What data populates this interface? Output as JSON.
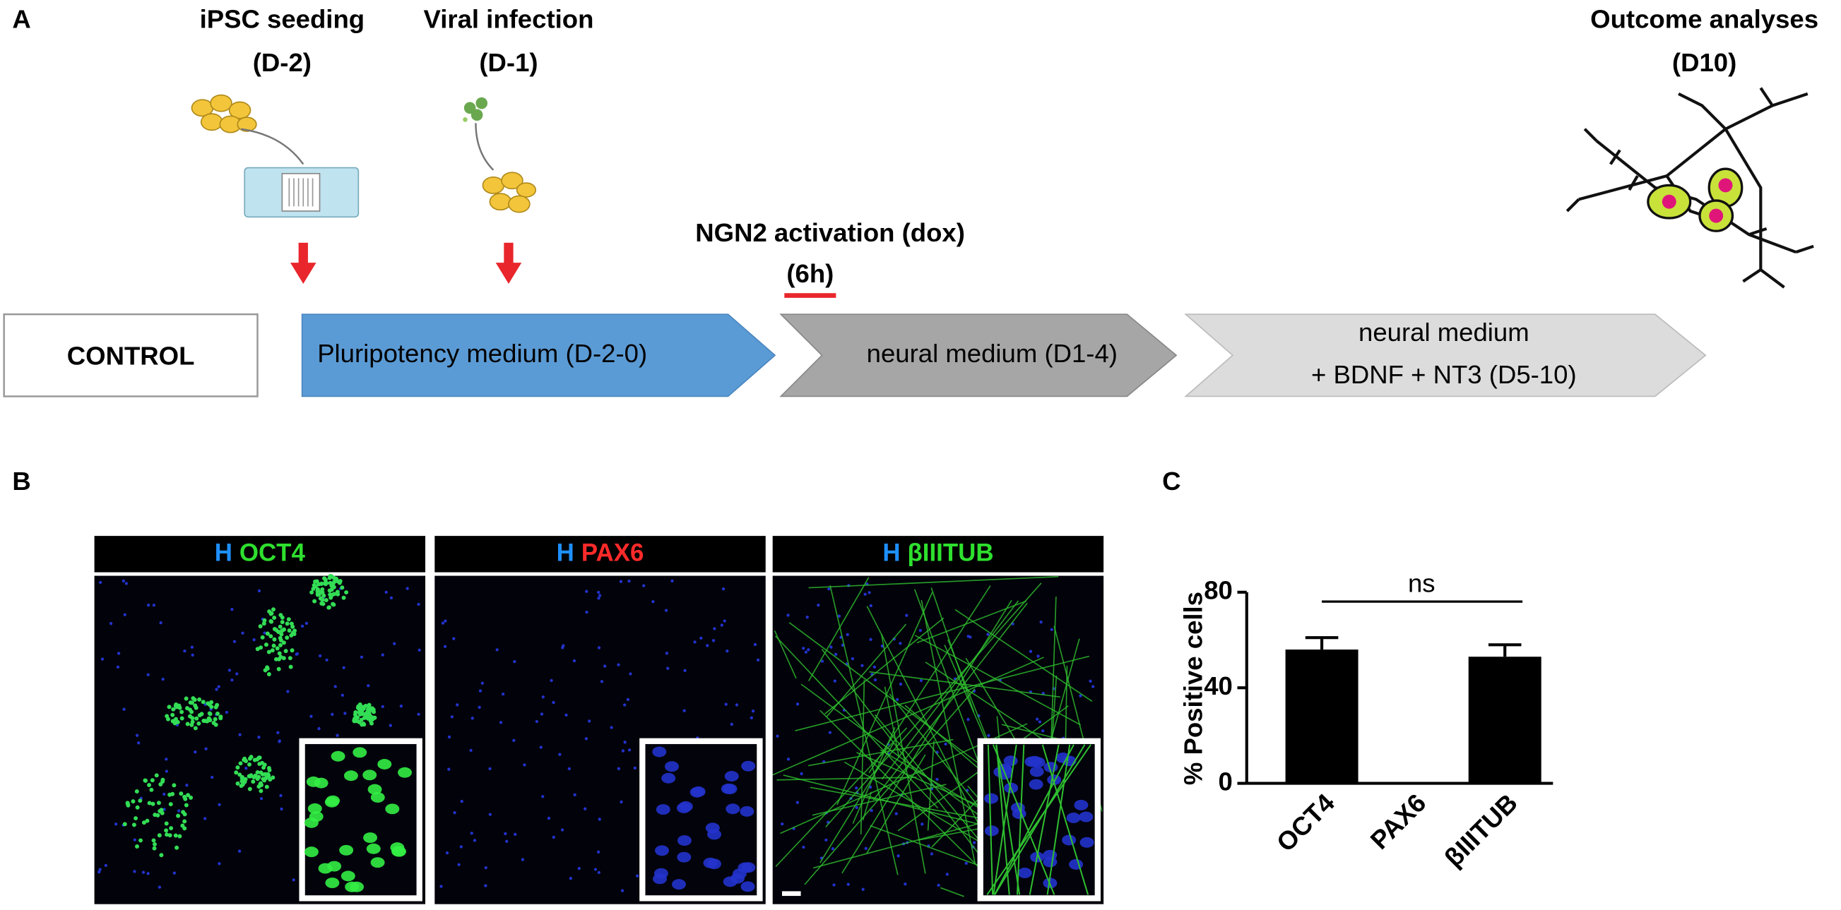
{
  "panel_a": {
    "label": "A",
    "steps": [
      {
        "title": "iPSC seeding",
        "day": "(D-2)"
      },
      {
        "title": "Viral infection",
        "day": "(D-1)"
      },
      {
        "title": "NGN2 activation (dox)",
        "day": "(6h)"
      },
      {
        "title": "Outcome analyses",
        "day": "(D10)"
      }
    ],
    "control": "CONTROL",
    "phases": [
      "Pluripotency medium (D-2-0)",
      "neural medium (D1-4)",
      [
        "neural medium",
        "+ BDNF + NT3 (D5-10)"
      ]
    ]
  },
  "panel_b": {
    "label": "B",
    "panels": [
      {
        "counterstain": "H",
        "marker": "OCT4"
      },
      {
        "counterstain": "H",
        "marker": "PAX6"
      },
      {
        "counterstain": "H",
        "marker": "βIIITUB"
      }
    ]
  },
  "chart_data": {
    "type": "bar",
    "panel_label": "C",
    "y_label": "% Positive cells",
    "categories": [
      "OCT4",
      "PAX6",
      "βIIITUB"
    ],
    "values": [
      56,
      0,
      53
    ],
    "errors": [
      5,
      null,
      5
    ],
    "color": "#000000",
    "ylim": [
      0,
      80
    ],
    "yticks": [
      0,
      40,
      80
    ],
    "annotation": "ns"
  }
}
